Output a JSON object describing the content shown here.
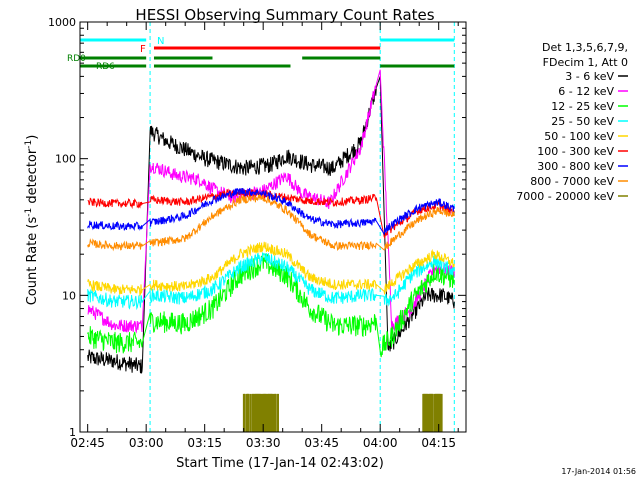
{
  "chart_data": {
    "type": "line",
    "title": "HESSI Observing Summary Count Rates",
    "xlabel": "Start Time (17-Jan-14 02:43:02)",
    "ylabel_prefix": "Count Rate (s",
    "ylabel_exp1": "-1",
    "ylabel_mid": " detector",
    "ylabel_exp2": "-1",
    "ylabel_suffix": ")",
    "x_ticks": [
      "02:45",
      "03:00",
      "03:15",
      "03:30",
      "03:45",
      "04:00",
      "04:15"
    ],
    "y_ticks": [
      "1",
      "10",
      "100",
      "1000"
    ],
    "xlim": [
      "02:43:02",
      "04:22:00"
    ],
    "ylim": [
      1,
      1000
    ],
    "y_scale": "log",
    "timestamp": "17-Jan-2014 01:56",
    "legend": {
      "header1": "Det 1,3,5,6,7,9,",
      "header2": "FDecim 1, Att 0",
      "items": [
        {
          "label": "3 - 6 keV",
          "color": "#000000"
        },
        {
          "label": "6 - 12 keV",
          "color": "#ff00ff"
        },
        {
          "label": "12 - 25 keV",
          "color": "#00ff00"
        },
        {
          "label": "25 - 50 keV",
          "color": "#00ffff"
        },
        {
          "label": "50 - 100 keV",
          "color": "#ffd700"
        },
        {
          "label": "100 - 300 keV",
          "color": "#ff0000"
        },
        {
          "label": "300 - 800 keV",
          "color": "#0000ff"
        },
        {
          "label": "800 - 7000 keV",
          "color": "#ff8c00"
        },
        {
          "label": "7000 - 20000 keV",
          "color": "#808000"
        }
      ]
    },
    "flags": [
      {
        "label": "N",
        "color": "#00ffff",
        "segments": [
          [
            "02:43:02",
            "03:00"
          ],
          [
            "04:00",
            "04:19"
          ]
        ]
      },
      {
        "label": "F",
        "color": "#ff0000",
        "segments": [
          [
            "03:02",
            "04:00"
          ]
        ]
      },
      {
        "label": "RD0",
        "color": "#008000",
        "segments": [
          [
            "02:43:02",
            "03:00"
          ],
          [
            "03:02",
            "03:17"
          ],
          [
            "03:40",
            "04:00"
          ]
        ]
      },
      {
        "label": "RD6",
        "color": "#008000",
        "segments": [
          [
            "02:43:02",
            "03:00"
          ],
          [
            "03:02",
            "03:37"
          ],
          [
            "04:00",
            "04:19"
          ]
        ]
      }
    ],
    "vlines": [
      "03:01",
      "04:00",
      "04:19"
    ],
    "series": [
      {
        "name": "3 - 6 keV",
        "color": "#000000",
        "x": [
          "02:45",
          "02:52",
          "02:59",
          "03:01",
          "03:05",
          "03:15",
          "03:25",
          "03:32",
          "03:36",
          "03:42",
          "03:48",
          "03:55",
          "03:59",
          "04:00",
          "04:02",
          "04:08",
          "04:12",
          "04:16",
          "04:19"
        ],
        "y": [
          3.5,
          3.3,
          3.0,
          160,
          135,
          100,
          85,
          90,
          105,
          90,
          85,
          130,
          330,
          400,
          4,
          7,
          10,
          10,
          9
        ],
        "noise": 0.06
      },
      {
        "name": "6 - 12 keV",
        "color": "#ff00ff",
        "x": [
          "02:45",
          "02:52",
          "02:59",
          "03:01",
          "03:08",
          "03:14",
          "03:17",
          "03:22",
          "03:30",
          "03:36",
          "03:40",
          "03:47",
          "03:55",
          "03:59",
          "04:00",
          "04:03",
          "04:08",
          "04:14",
          "04:19"
        ],
        "y": [
          8,
          6,
          6,
          90,
          75,
          70,
          60,
          52,
          58,
          75,
          55,
          47,
          120,
          350,
          420,
          6,
          8,
          16,
          15
        ],
        "noise": 0.05
      },
      {
        "name": "12 - 25 keV",
        "color": "#00ff00",
        "x": [
          "02:45",
          "02:52",
          "02:59",
          "03:01",
          "03:10",
          "03:17",
          "03:24",
          "03:30",
          "03:36",
          "03:42",
          "03:48",
          "03:56",
          "03:59",
          "04:00",
          "04:03",
          "04:08",
          "04:14",
          "04:19"
        ],
        "y": [
          5,
          4.5,
          4.5,
          6.5,
          6.2,
          8,
          14,
          17.5,
          14,
          8,
          6,
          6,
          6.5,
          4,
          5,
          9,
          15,
          13
        ],
        "noise": 0.08
      },
      {
        "name": "25 - 50 keV",
        "color": "#00ffff",
        "x": [
          "02:45",
          "02:52",
          "02:59",
          "03:01",
          "03:10",
          "03:17",
          "03:24",
          "03:30",
          "03:36",
          "03:42",
          "03:48",
          "03:56",
          "03:59",
          "04:01",
          "04:04",
          "04:08",
          "04:14",
          "04:19"
        ],
        "y": [
          10,
          9,
          9,
          10,
          9.5,
          11,
          16,
          19,
          16,
          11,
          9.5,
          10,
          10,
          9,
          10,
          14,
          18,
          15
        ],
        "noise": 0.05
      },
      {
        "name": "50 - 100 keV",
        "color": "#ffd700",
        "x": [
          "02:45",
          "02:52",
          "02:59",
          "03:01",
          "03:10",
          "03:17",
          "03:24",
          "03:30",
          "03:36",
          "03:42",
          "03:48",
          "03:56",
          "03:59",
          "04:01",
          "04:04",
          "04:08",
          "04:14",
          "04:19"
        ],
        "y": [
          12,
          11,
          11,
          12,
          11.5,
          13.5,
          20,
          23,
          20,
          13.5,
          12,
          12,
          12,
          11,
          13,
          16,
          20,
          17
        ],
        "noise": 0.04
      },
      {
        "name": "100 - 300 keV",
        "color": "#ff0000",
        "x": [
          "02:45",
          "02:52",
          "02:59",
          "03:01",
          "03:10",
          "03:17",
          "03:24",
          "03:30",
          "03:36",
          "03:42",
          "03:48",
          "03:56",
          "03:59",
          "04:01",
          "04:05",
          "04:10",
          "04:15",
          "04:19"
        ],
        "y": [
          48,
          47,
          47,
          50,
          48,
          53,
          57,
          55,
          52,
          49,
          48,
          50,
          52,
          28,
          34,
          42,
          46,
          40
        ],
        "noise": 0.03
      },
      {
        "name": "300 - 800 keV",
        "color": "#0000ff",
        "x": [
          "02:45",
          "02:52",
          "02:59",
          "03:01",
          "03:10",
          "03:17",
          "03:24",
          "03:30",
          "03:36",
          "03:42",
          "03:48",
          "03:56",
          "03:59",
          "04:01",
          "04:05",
          "04:10",
          "04:15",
          "04:19"
        ],
        "y": [
          33,
          32,
          32,
          34,
          38,
          50,
          58,
          56,
          48,
          36,
          33,
          34,
          35,
          30,
          36,
          44,
          48,
          43
        ],
        "noise": 0.03
      },
      {
        "name": "800 - 7000 keV",
        "color": "#ff8c00",
        "x": [
          "02:45",
          "02:52",
          "02:59",
          "03:01",
          "03:10",
          "03:17",
          "03:24",
          "03:30",
          "03:36",
          "03:42",
          "03:48",
          "03:56",
          "03:59",
          "04:01",
          "04:05",
          "04:10",
          "04:15",
          "04:19"
        ],
        "y": [
          24,
          23,
          23,
          24,
          26,
          38,
          50,
          52,
          42,
          28,
          23,
          23,
          24,
          22,
          28,
          36,
          42,
          38
        ],
        "noise": 0.03
      },
      {
        "name": "7000 - 20000 keV",
        "color": "#808000",
        "bars": [
          [
            "03:25",
            "03:34"
          ],
          [
            "04:11",
            "04:16"
          ]
        ],
        "y": 1.9
      }
    ]
  }
}
